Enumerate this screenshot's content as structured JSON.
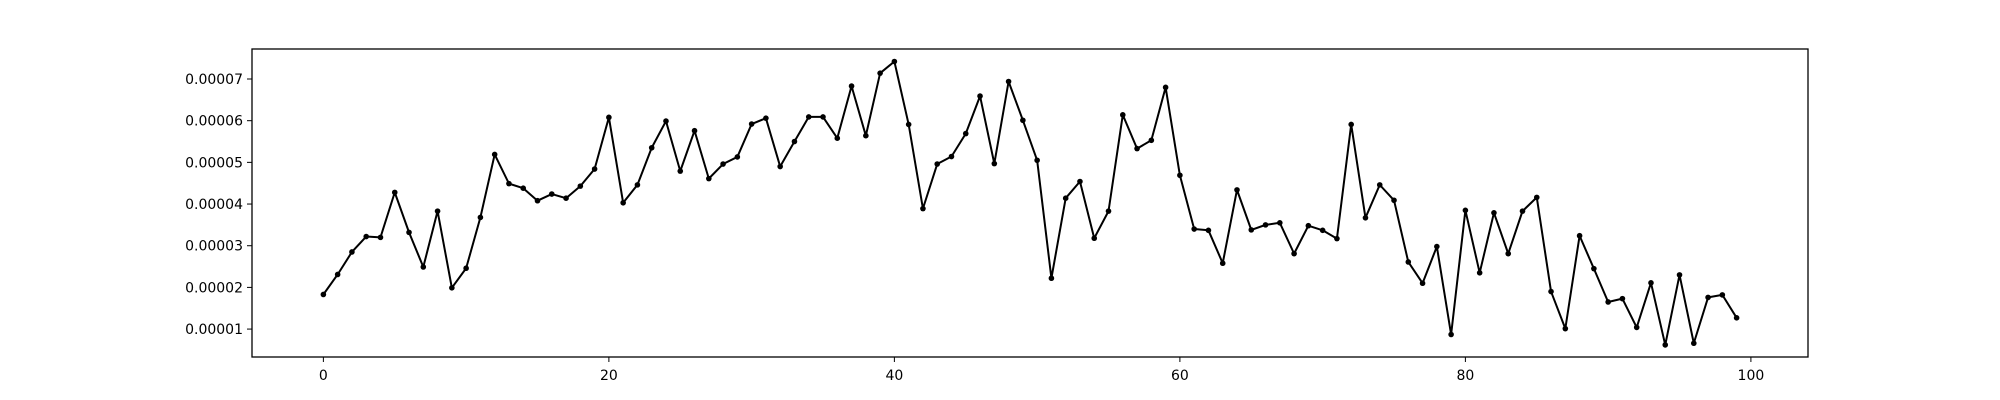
{
  "chart_data": {
    "type": "line",
    "title": "",
    "xlabel": "",
    "ylabel": "",
    "xlim": [
      -5,
      104
    ],
    "ylim": [
      3.3e-06,
      7.72e-05
    ],
    "grid": false,
    "legend": "none",
    "color": "#000000",
    "x_ticks": [
      {
        "value": 0,
        "label": "0"
      },
      {
        "value": 20,
        "label": "20"
      },
      {
        "value": 40,
        "label": "40"
      },
      {
        "value": 60,
        "label": "60"
      },
      {
        "value": 80,
        "label": "80"
      },
      {
        "value": 100,
        "label": "100"
      }
    ],
    "y_ticks": [
      {
        "value": 1e-05,
        "label": "0.00001"
      },
      {
        "value": 2e-05,
        "label": "0.00002"
      },
      {
        "value": 3e-05,
        "label": "0.00003"
      },
      {
        "value": 4e-05,
        "label": "0.00004"
      },
      {
        "value": 5e-05,
        "label": "0.00005"
      },
      {
        "value": 6e-05,
        "label": "0.00006"
      },
      {
        "value": 7e-05,
        "label": "0.00007"
      }
    ],
    "series": [
      {
        "values": [
          1.83e-05,
          2.31e-05,
          2.85e-05,
          3.22e-05,
          3.2e-05,
          4.28e-05,
          3.32e-05,
          2.49e-05,
          3.83e-05,
          1.99e-05,
          2.46e-05,
          3.68e-05,
          5.19e-05,
          4.49e-05,
          4.38e-05,
          4.08e-05,
          4.24e-05,
          4.14e-05,
          4.43e-05,
          4.84e-05,
          6.08e-05,
          4.03e-05,
          4.46e-05,
          5.35e-05,
          5.99e-05,
          4.79e-05,
          5.76e-05,
          4.61e-05,
          4.96e-05,
          5.13e-05,
          5.92e-05,
          6.06e-05,
          4.9e-05,
          5.5e-05,
          6.09e-05,
          6.09e-05,
          5.58e-05,
          6.83e-05,
          5.64e-05,
          7.14e-05,
          7.42e-05,
          5.91e-05,
          3.89e-05,
          4.96e-05,
          5.14e-05,
          5.69e-05,
          6.59e-05,
          4.97e-05,
          6.94e-05,
          6.01e-05,
          5.05e-05,
          2.22e-05,
          4.14e-05,
          4.54e-05,
          3.18e-05,
          3.83e-05,
          6.14e-05,
          5.33e-05,
          5.53e-05,
          6.8e-05,
          4.69e-05,
          3.4e-05,
          3.37e-05,
          2.58e-05,
          4.34e-05,
          3.38e-05,
          3.5e-05,
          3.55e-05,
          2.81e-05,
          3.48e-05,
          3.37e-05,
          3.17e-05,
          5.91e-05,
          3.67e-05,
          4.46e-05,
          4.09e-05,
          2.61e-05,
          2.1e-05,
          2.98e-05,
          8.7e-06,
          3.85e-05,
          2.35e-05,
          3.79e-05,
          2.81e-05,
          3.83e-05,
          4.16e-05,
          1.9e-05,
          1.01e-05,
          3.24e-05,
          2.45e-05,
          1.65e-05,
          1.73e-05,
          1.04e-05,
          2.11e-05,
          6.2e-06,
          2.3e-05,
          6.6e-06,
          1.76e-05,
          1.82e-05,
          1.27e-05
        ]
      }
    ]
  }
}
